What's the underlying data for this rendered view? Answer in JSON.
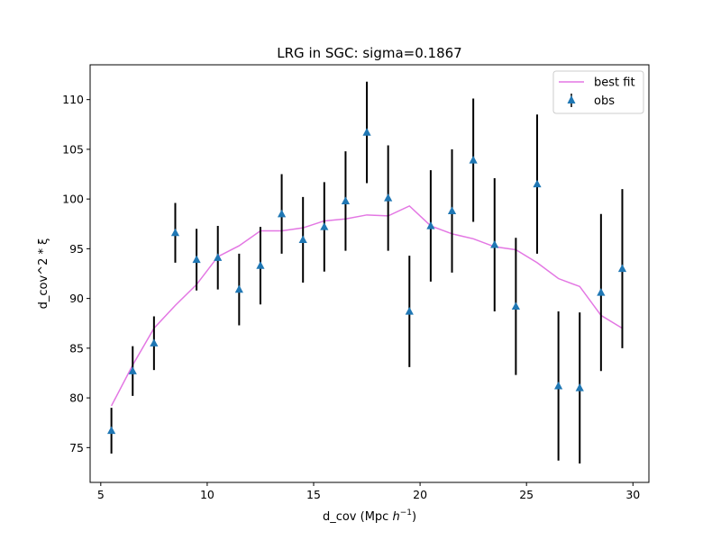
{
  "chart_data": {
    "type": "scatter",
    "title": "LRG in SGC: sigma=0.1867",
    "xlabel_prefix": "d_cov (Mpc ",
    "xlabel_h": "h",
    "xlabel_exp": "−1",
    "xlabel_suffix": ")",
    "ylabel": "d_cov^2 * ξ",
    "xlim": [
      4.5,
      30.75
    ],
    "ylim": [
      71.5,
      113.5
    ],
    "xticks": [
      5,
      10,
      15,
      20,
      25,
      30
    ],
    "yticks": [
      75,
      80,
      85,
      90,
      95,
      100,
      105,
      110
    ],
    "grid": false,
    "legend_position": "top-right",
    "colors": {
      "best_fit": "#e377e3",
      "obs": "#1f77b4",
      "errorbar": "#000000"
    },
    "series": [
      {
        "name": "best fit",
        "kind": "line",
        "x": [
          5.5,
          6.5,
          7.5,
          8.5,
          9.5,
          10.5,
          11.5,
          12.5,
          13.5,
          14.5,
          15.5,
          16.5,
          17.5,
          18.5,
          19.5,
          20.5,
          21.5,
          22.5,
          23.5,
          24.5,
          25.5,
          26.5,
          27.5,
          28.5,
          29.5
        ],
        "y": [
          79.2,
          83.3,
          87.0,
          89.3,
          91.4,
          94.2,
          95.3,
          96.8,
          96.8,
          97.1,
          97.8,
          98.0,
          98.4,
          98.3,
          99.3,
          97.3,
          96.5,
          96.0,
          95.2,
          94.9,
          93.6,
          92.0,
          91.2,
          88.3,
          87.0
        ]
      },
      {
        "name": "obs",
        "kind": "errorbar",
        "x": [
          5.5,
          6.5,
          7.5,
          8.5,
          9.5,
          10.5,
          11.5,
          12.5,
          13.5,
          14.5,
          15.5,
          16.5,
          17.5,
          18.5,
          19.5,
          20.5,
          21.5,
          22.5,
          23.5,
          24.5,
          25.5,
          26.5,
          27.5,
          28.5,
          29.5
        ],
        "y": [
          76.7,
          82.7,
          85.5,
          96.6,
          93.9,
          94.1,
          90.9,
          93.3,
          98.5,
          95.9,
          97.2,
          99.8,
          106.7,
          100.1,
          88.7,
          97.3,
          98.8,
          103.9,
          95.4,
          89.2,
          101.5,
          81.2,
          81.0,
          90.6,
          93.0
        ],
        "yerr": [
          2.3,
          2.5,
          2.7,
          3.0,
          3.1,
          3.2,
          3.6,
          3.9,
          4.0,
          4.3,
          4.5,
          5.0,
          5.1,
          5.3,
          5.6,
          5.6,
          6.2,
          6.2,
          6.7,
          6.9,
          7.0,
          7.5,
          7.6,
          7.9,
          8.0
        ]
      }
    ]
  }
}
